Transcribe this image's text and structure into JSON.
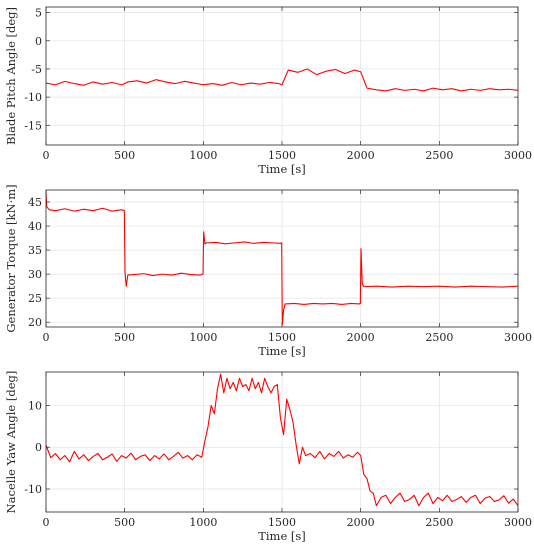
{
  "chart_data": [
    {
      "type": "line",
      "xlabel": "Time [s]",
      "ylabel": "Blade Pitch Angle [deg]",
      "xlim": [
        0,
        3000
      ],
      "ylim": [
        -18.5,
        6
      ],
      "xticks": [
        0,
        500,
        1000,
        1500,
        2000,
        2500,
        3000
      ],
      "xtick_labels": [
        "0",
        "500",
        "1000",
        "1500",
        "2000",
        "2500",
        "3000"
      ],
      "yticks": [
        -15,
        -10,
        -5,
        0,
        5
      ],
      "ytick_labels": [
        "-15",
        "-10",
        "-5",
        "0",
        "5"
      ],
      "grid": true,
      "color": "#ff0000",
      "series": [
        {
          "x": [
            0,
            60,
            120,
            180,
            240,
            300,
            360,
            420,
            480,
            500,
            520,
            580,
            640,
            700,
            760,
            820,
            880,
            940,
            1000,
            1060,
            1120,
            1180,
            1240,
            1300,
            1360,
            1420,
            1480,
            1500,
            1540,
            1600,
            1660,
            1720,
            1780,
            1840,
            1900,
            1960,
            2000,
            2040,
            2100,
            2160,
            2220,
            2280,
            2340,
            2400,
            2460,
            2520,
            2580,
            2640,
            2700,
            2760,
            2820,
            2880,
            2940,
            3000
          ],
          "y": [
            -7.5,
            -7.8,
            -7.2,
            -7.6,
            -7.9,
            -7.3,
            -7.7,
            -7.4,
            -7.8,
            -7.6,
            -7.3,
            -7.1,
            -7.5,
            -6.9,
            -7.3,
            -7.6,
            -7.2,
            -7.5,
            -7.8,
            -7.6,
            -7.9,
            -7.4,
            -7.8,
            -7.5,
            -7.7,
            -7.4,
            -7.6,
            -7.8,
            -5.2,
            -5.6,
            -5.0,
            -6.0,
            -5.4,
            -5.1,
            -5.8,
            -5.2,
            -5.5,
            -8.4,
            -8.7,
            -8.9,
            -8.5,
            -8.8,
            -8.6,
            -8.9,
            -8.4,
            -8.7,
            -8.5,
            -8.9,
            -8.6,
            -8.8,
            -8.5,
            -8.7,
            -8.6,
            -8.8
          ]
        }
      ]
    },
    {
      "type": "line",
      "xlabel": "Time [s]",
      "ylabel": "Generator Torque [kN·m]",
      "xlim": [
        0,
        3000
      ],
      "ylim": [
        19,
        47.5
      ],
      "xticks": [
        0,
        500,
        1000,
        1500,
        2000,
        2500,
        3000
      ],
      "xtick_labels": [
        "0",
        "500",
        "1000",
        "1500",
        "2000",
        "2500",
        "3000"
      ],
      "yticks": [
        20,
        25,
        30,
        35,
        40,
        45
      ],
      "ytick_labels": [
        "20",
        "25",
        "30",
        "35",
        "40",
        "45"
      ],
      "grid": true,
      "color": "#ff0000",
      "series": [
        {
          "x": [
            0,
            5,
            20,
            60,
            120,
            180,
            240,
            300,
            360,
            420,
            480,
            498,
            502,
            510,
            520,
            560,
            620,
            680,
            740,
            800,
            860,
            920,
            980,
            998,
            1002,
            1010,
            1020,
            1080,
            1140,
            1200,
            1260,
            1320,
            1380,
            1440,
            1490,
            1498,
            1502,
            1510,
            1520,
            1580,
            1640,
            1700,
            1760,
            1820,
            1880,
            1940,
            1990,
            1998,
            2002,
            2010,
            2020,
            2100,
            2200,
            2300,
            2400,
            2500,
            2600,
            2700,
            2800,
            2900,
            3000
          ],
          "y": [
            47,
            44,
            43.4,
            43.2,
            43.6,
            43.1,
            43.5,
            43.2,
            43.7,
            43.1,
            43.4,
            43.2,
            30.5,
            27.5,
            29.8,
            29.9,
            30.1,
            29.7,
            30.0,
            29.8,
            30.2,
            29.9,
            29.8,
            30.0,
            38.8,
            36.3,
            36.5,
            36.6,
            36.3,
            36.5,
            36.7,
            36.4,
            36.6,
            36.5,
            36.4,
            36.5,
            19.5,
            22.5,
            23.8,
            23.9,
            23.7,
            23.9,
            23.8,
            23.9,
            23.7,
            23.9,
            23.8,
            23.9,
            35.3,
            28.0,
            27.4,
            27.5,
            27.3,
            27.5,
            27.4,
            27.5,
            27.3,
            27.5,
            27.4,
            27.3,
            27.5
          ]
        }
      ]
    },
    {
      "type": "line",
      "xlabel": "Time [s]",
      "ylabel": "Nacelle Yaw Angle [deg]",
      "xlim": [
        0,
        3000
      ],
      "ylim": [
        -15.5,
        18
      ],
      "xticks": [
        0,
        500,
        1000,
        1500,
        2000,
        2500,
        3000
      ],
      "xtick_labels": [
        "0",
        "500",
        "1000",
        "1500",
        "2000",
        "2500",
        "3000"
      ],
      "yticks": [
        -10,
        0,
        10
      ],
      "ytick_labels": [
        "-10",
        "0",
        "10"
      ],
      "grid": true,
      "color": "#ff0000",
      "series": [
        {
          "x": [
            0,
            30,
            60,
            90,
            120,
            150,
            180,
            210,
            240,
            270,
            300,
            330,
            360,
            390,
            420,
            450,
            480,
            510,
            540,
            570,
            600,
            630,
            660,
            690,
            720,
            750,
            780,
            810,
            840,
            870,
            900,
            930,
            960,
            990,
            1010,
            1030,
            1050,
            1070,
            1090,
            1110,
            1130,
            1150,
            1170,
            1190,
            1210,
            1230,
            1250,
            1270,
            1290,
            1310,
            1330,
            1350,
            1370,
            1390,
            1410,
            1430,
            1450,
            1470,
            1490,
            1510,
            1530,
            1550,
            1570,
            1590,
            1610,
            1630,
            1650,
            1680,
            1710,
            1740,
            1770,
            1800,
            1830,
            1860,
            1890,
            1920,
            1950,
            1980,
            2000,
            2020,
            2040,
            2060,
            2080,
            2100,
            2130,
            2160,
            2190,
            2220,
            2250,
            2280,
            2310,
            2340,
            2370,
            2400,
            2430,
            2460,
            2490,
            2520,
            2550,
            2580,
            2610,
            2640,
            2670,
            2700,
            2730,
            2760,
            2790,
            2820,
            2850,
            2880,
            2910,
            2940,
            2970,
            3000
          ],
          "y": [
            0.5,
            -2.5,
            -1.5,
            -3.0,
            -2.0,
            -3.5,
            -1.0,
            -2.8,
            -1.8,
            -3.2,
            -2.2,
            -1.5,
            -3.0,
            -2.4,
            -1.6,
            -3.4,
            -2.0,
            -2.6,
            -1.4,
            -3.0,
            -2.2,
            -1.8,
            -3.2,
            -2.0,
            -2.8,
            -1.6,
            -3.0,
            -2.2,
            -1.2,
            -2.6,
            -2.0,
            -3.0,
            -1.8,
            -2.4,
            1.5,
            5.0,
            10.0,
            8.0,
            14.0,
            17.5,
            13.0,
            16.5,
            14.0,
            15.5,
            13.5,
            16.5,
            14.5,
            15.0,
            13.5,
            16.5,
            14.0,
            15.5,
            13.0,
            16.5,
            14.5,
            13.0,
            14.5,
            15.0,
            7.0,
            3.0,
            11.5,
            9.0,
            6.0,
            0.5,
            -4.0,
            0.0,
            -2.0,
            -1.5,
            -2.5,
            -1.0,
            -2.8,
            -1.5,
            -2.2,
            -1.0,
            -2.6,
            -1.8,
            -2.4,
            -1.2,
            -2.0,
            -6.5,
            -7.5,
            -10.5,
            -11.0,
            -14.0,
            -12.0,
            -11.5,
            -13.5,
            -12.0,
            -11.0,
            -13.0,
            -12.5,
            -11.5,
            -14.0,
            -12.0,
            -11.0,
            -13.5,
            -12.0,
            -12.8,
            -11.5,
            -13.0,
            -12.5,
            -11.8,
            -13.2,
            -12.0,
            -11.5,
            -13.5,
            -12.2,
            -11.8,
            -13.0,
            -12.6,
            -11.6,
            -13.4,
            -12.4,
            -14.0
          ]
        }
      ]
    }
  ]
}
